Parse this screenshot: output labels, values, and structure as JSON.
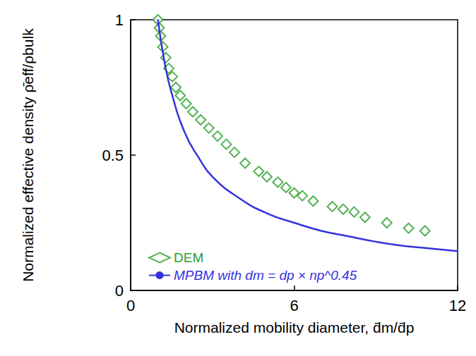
{
  "chart_data": {
    "type": "line",
    "x_label": "Normalized mobility diameter, d̄m/d̄p",
    "y_label": "Normalized effective density ρ̄eff/ρbulk",
    "xlim": [
      0,
      12
    ],
    "xticks": [
      0,
      6,
      12
    ],
    "ylim": [
      0,
      1
    ],
    "yticks": [
      0,
      0.5,
      1
    ],
    "grid": false,
    "legend": "lower left",
    "series": [
      {
        "name": "DEM",
        "type": "scatter",
        "color": "#2a9d2a",
        "marker": "diamond",
        "x": [
          1.0,
          1.05,
          1.1,
          1.18,
          1.29,
          1.4,
          1.53,
          1.66,
          1.82,
          2.04,
          2.28,
          2.57,
          2.87,
          3.19,
          3.51,
          3.81,
          4.2,
          4.7,
          5.0,
          5.4,
          5.7,
          6.0,
          6.3,
          6.7,
          7.4,
          7.8,
          8.2,
          8.6,
          9.4,
          10.2,
          10.8
        ],
        "values": [
          1.0,
          0.97,
          0.94,
          0.9,
          0.86,
          0.82,
          0.79,
          0.75,
          0.72,
          0.69,
          0.66,
          0.63,
          0.6,
          0.57,
          0.54,
          0.51,
          0.47,
          0.44,
          0.42,
          0.4,
          0.38,
          0.36,
          0.35,
          0.33,
          0.31,
          0.3,
          0.29,
          0.27,
          0.25,
          0.23,
          0.22
        ]
      },
      {
        "name": "MPBM with dm = dp × np^0.45",
        "type": "line",
        "color": "#3333dd",
        "line_style": "solid",
        "x": [
          1,
          1.25,
          1.5,
          2,
          2.5,
          3,
          4,
          5,
          6,
          7,
          8,
          9,
          10,
          11,
          12
        ],
        "values": [
          1.0,
          0.84,
          0.73,
          0.58,
          0.49,
          0.42,
          0.34,
          0.285,
          0.25,
          0.22,
          0.2,
          0.18,
          0.165,
          0.155,
          0.145
        ]
      }
    ]
  }
}
